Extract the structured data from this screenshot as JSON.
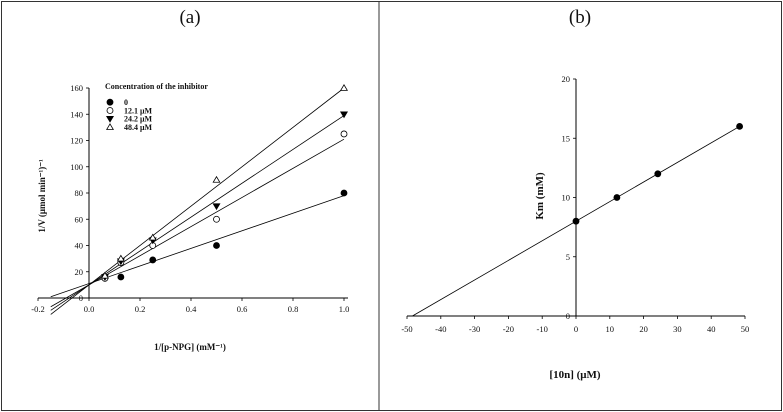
{
  "panels": {
    "a_title": "(a)",
    "b_title": "(b)"
  },
  "chart_data": [
    {
      "type": "scatter",
      "panel": "(a)",
      "title": "",
      "xlabel": "1/[p-NPG] (mM⁻¹)",
      "ylabel": "1/V (μmol min⁻¹)⁻¹",
      "xlim": [
        -0.2,
        1.0
      ],
      "ylim": [
        0,
        160
      ],
      "xticks": [
        "-0.2",
        "0.0",
        "0.2",
        "0.4",
        "0.6",
        "0.8",
        "1.0"
      ],
      "yticks": [
        "0",
        "20",
        "40",
        "60",
        "80",
        "100",
        "120",
        "140",
        "160"
      ],
      "legend_title": "Concentration of the inhibitor",
      "legend_position": "top-left",
      "series": [
        {
          "name": "0",
          "marker": "filled-circle",
          "x": [
            0.125,
            0.25,
            0.5,
            1.0
          ],
          "y": [
            16,
            29,
            40,
            80
          ],
          "fit": {
            "slope": 67,
            "intercept": 11
          }
        },
        {
          "name": "12.1 μM",
          "marker": "open-circle",
          "x": [
            0.0625,
            0.125,
            0.25,
            0.5,
            1.0
          ],
          "y": [
            15,
            27,
            40,
            60,
            125
          ],
          "fit": {
            "slope": 111,
            "intercept": 10
          }
        },
        {
          "name": "24.2 μM",
          "marker": "filled-triangle-down",
          "x": [
            0.0625,
            0.125,
            0.25,
            0.5,
            1.0
          ],
          "y": [
            16,
            28,
            44,
            70,
            140
          ],
          "fit": {
            "slope": 129,
            "intercept": 10
          }
        },
        {
          "name": "48.4 μM",
          "marker": "open-triangle-up",
          "x": [
            0.0625,
            0.125,
            0.25,
            0.5,
            1.0
          ],
          "y": [
            17,
            30,
            46,
            90,
            160
          ],
          "fit": {
            "slope": 150,
            "intercept": 10
          }
        }
      ]
    },
    {
      "type": "scatter",
      "panel": "(b)",
      "title": "",
      "xlabel": "[10n] (μM)",
      "ylabel": "Km (mM)",
      "xlim": [
        -50,
        50
      ],
      "ylim": [
        0,
        20
      ],
      "xticks": [
        "-50",
        "-40",
        "-30",
        "-20",
        "-10",
        "0",
        "10",
        "20",
        "30",
        "40",
        "50"
      ],
      "yticks": [
        "0",
        "5",
        "10",
        "15",
        "20"
      ],
      "series": [
        {
          "marker": "filled-circle",
          "x": [
            0,
            12.1,
            24.2,
            48.4
          ],
          "y": [
            8,
            10,
            12,
            16
          ],
          "fit": {
            "slope": 0.1653,
            "intercept": 8
          }
        }
      ]
    }
  ]
}
